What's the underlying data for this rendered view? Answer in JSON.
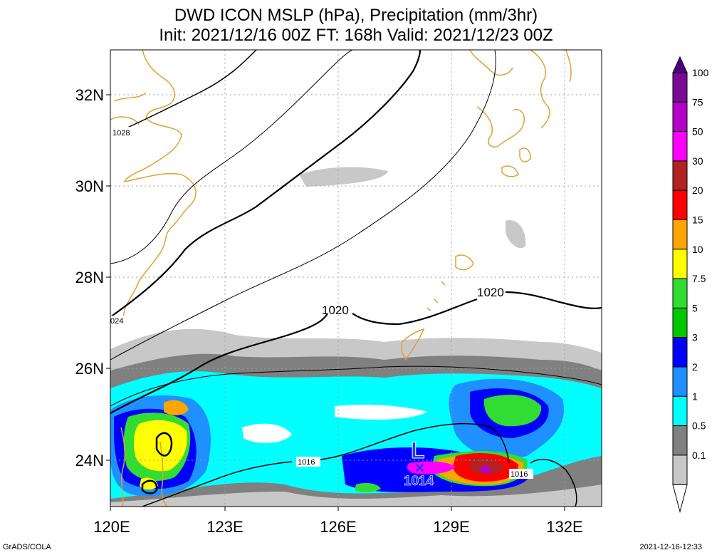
{
  "title": {
    "line1": "DWD ICON MSLP (hPa), Precipitation (mm/3hr)",
    "line2": "Init: 2021/12/16 00Z  FT: 168h  Valid: 2021/12/23 00Z"
  },
  "axes": {
    "lat_labels": [
      "32N",
      "30N",
      "28N",
      "26N",
      "24N"
    ],
    "lon_labels": [
      "120E",
      "123E",
      "126E",
      "129E",
      "132E"
    ]
  },
  "isobars": {
    "labels": [
      "1028",
      "024",
      "1020",
      "1020",
      "1016",
      "1016"
    ]
  },
  "low_center": {
    "symbol": "L",
    "marker": "×",
    "pressure": "1014",
    "color": "#1e3cff"
  },
  "colorbar": {
    "labels": [
      "100",
      "75",
      "50",
      "30",
      "20",
      "15",
      "10",
      "7.5",
      "5",
      "3",
      "2",
      "1",
      "0.5",
      "0.1"
    ],
    "colors": [
      "#7a0a96",
      "#b400c8",
      "#ff00ff",
      "#b22222",
      "#ff0000",
      "#ffa500",
      "#ffff00",
      "#32dc32",
      "#00c800",
      "#0000ff",
      "#1e90ff",
      "#00ffff",
      "#808080",
      "#c8c8c8"
    ],
    "top_color": "#4b0082"
  },
  "colors": {
    "coast": "#e0a030",
    "grid": "#a0a0a0"
  },
  "footer": {
    "credit": "GrADS/COLA",
    "timestamp": "2021-12-16-12:33"
  }
}
